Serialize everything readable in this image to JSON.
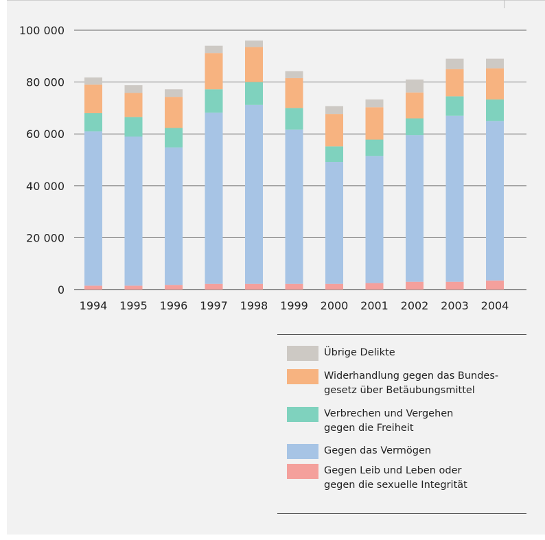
{
  "chart_data": {
    "type": "bar",
    "stacked": true,
    "title": "",
    "xlabel": "",
    "ylabel": "",
    "ylim": [
      0,
      100000
    ],
    "yticks": [
      0,
      20000,
      40000,
      60000,
      80000,
      100000
    ],
    "ytick_labels": [
      "0",
      "20 000",
      "40 000",
      "60 000",
      "80 000",
      "100 000"
    ],
    "grid": "horizontal",
    "legend_position": "bottom-right",
    "categories": [
      "1994",
      "1995",
      "1996",
      "1997",
      "1998",
      "1999",
      "2000",
      "2001",
      "2002",
      "2003",
      "2004"
    ],
    "series": [
      {
        "name": "Gegen Leib und Leben oder\ngegen die sexuelle Integrität",
        "color": "#f4a09c",
        "values": [
          1500,
          1500,
          1800,
          2200,
          2200,
          2200,
          2200,
          2500,
          3000,
          3000,
          3500
        ]
      },
      {
        "name": "Gegen das Vermögen",
        "color": "#a7c4e5",
        "values": [
          59500,
          57500,
          53000,
          66000,
          69000,
          59500,
          47000,
          49000,
          56500,
          64000,
          61500
        ]
      },
      {
        "name": "Verbrechen und Vergehen\ngegen die Freiheit",
        "color": "#7fd2be",
        "values": [
          7000,
          7500,
          7500,
          9000,
          8800,
          8300,
          6000,
          6300,
          6500,
          7500,
          8300
        ]
      },
      {
        "name": "Widerhandlung gegen das Bundes-\ngesetz über Betäubungsmittel",
        "color": "#f7b380",
        "values": [
          11000,
          9300,
          12000,
          14000,
          13500,
          11500,
          12500,
          12500,
          10000,
          10500,
          12000
        ]
      },
      {
        "name": "Übrige Delikte",
        "color": "#cdc9c4",
        "values": [
          2800,
          3000,
          2900,
          2800,
          2500,
          2700,
          3000,
          3000,
          5000,
          4000,
          3700
        ]
      }
    ]
  }
}
